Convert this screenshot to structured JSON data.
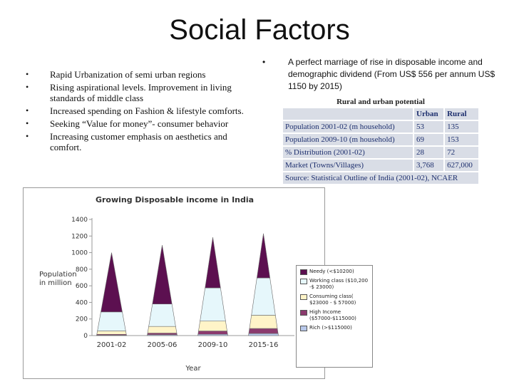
{
  "slide": {
    "title": "Social Factors",
    "left_bullets": [
      "Rapid Urbanization of semi urban regions",
      "Rising aspirational levels. Improvement in living standards of middle class",
      "Increased spending on Fashion & lifestyle comforts.",
      "Seeking “Value for money”- consumer behavior",
      " Increasing customer emphasis on  aesthetics and comfort."
    ],
    "right_bullet": "A perfect marriage of rise in disposable income and demographic dividend (From US$ 556 per annum US$ 1150 by 2015)",
    "bullet_symbol": "•"
  },
  "table": {
    "title": "Rural and urban potential",
    "headers": [
      "",
      "Urban",
      "Rural"
    ],
    "rows": [
      [
        "Population 2001-02 (m household)",
        "53",
        "135"
      ],
      [
        "Population 2009-10 (m household)",
        "69",
        "153"
      ],
      [
        "% Distribution (2001-02)",
        "28",
        "72"
      ],
      [
        "Market (Towns/Villages)",
        "3,768",
        "627,000"
      ]
    ],
    "source": "Source: Statistical Outline of India (2001-02), NCAER"
  },
  "chart_data": {
    "type": "bar",
    "stacked": true,
    "shape": "cone",
    "title": "Growing Disposable income in India",
    "xlabel": "Year",
    "ylabel": "Population in million",
    "ylim": [
      0,
      1400
    ],
    "yticks": [
      0,
      200,
      400,
      600,
      800,
      1000,
      1200,
      1400
    ],
    "grid": false,
    "legend_position": "right",
    "categories": [
      "2001-02",
      "2005-06",
      "2009-10",
      "2015-16"
    ],
    "series": [
      {
        "name": "Rich (>$115000)",
        "color": "#b8c8ea",
        "values": [
          5,
          10,
          15,
          25
        ]
      },
      {
        "name": "High Income ($57000-$115000)",
        "color": "#8b3a6e",
        "values": [
          10,
          20,
          40,
          60
        ]
      },
      {
        "name": "Consuming class( $23000 - $ 57000)",
        "color": "#fff4c8",
        "values": [
          40,
          80,
          120,
          160
        ]
      },
      {
        "name": "Working class ($10,200 -$ 23000)",
        "color": "#e6f7fb",
        "values": [
          230,
          270,
          400,
          450
        ]
      },
      {
        "name": "Needy (<$10200)",
        "color": "#5c1050",
        "values": [
          715,
          710,
          610,
          535
        ]
      }
    ]
  }
}
